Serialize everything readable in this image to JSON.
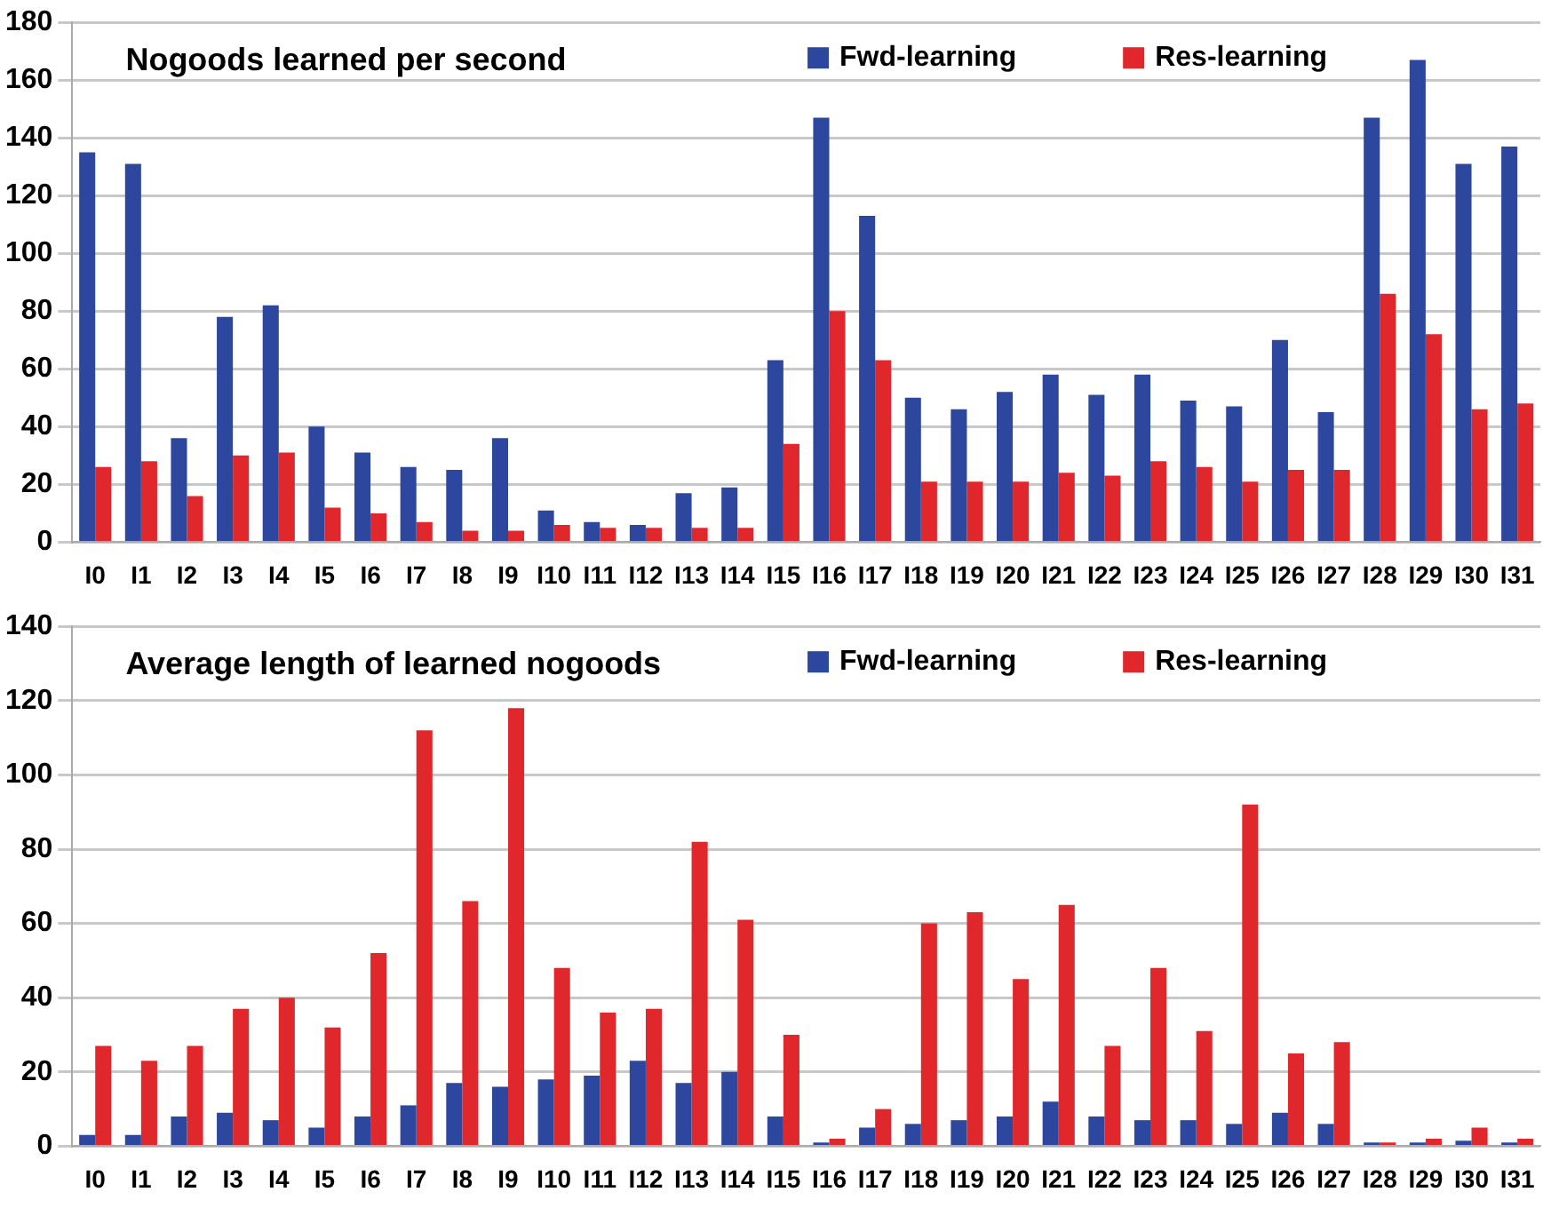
{
  "chart_data": [
    {
      "type": "bar",
      "title": "Nogoods learned per second",
      "categories": [
        "I0",
        "I1",
        "I2",
        "I3",
        "I4",
        "I5",
        "I6",
        "I7",
        "I8",
        "I9",
        "I10",
        "I11",
        "I12",
        "I13",
        "I14",
        "I15",
        "I16",
        "I17",
        "I18",
        "I19",
        "I20",
        "I21",
        "I22",
        "I23",
        "I24",
        "I25",
        "I26",
        "I27",
        "I28",
        "I29",
        "I30",
        "I31"
      ],
      "series": [
        {
          "name": "Fwd-learning",
          "color": "#2e479e",
          "values": [
            135,
            131,
            36,
            78,
            82,
            40,
            31,
            26,
            25,
            36,
            11,
            7,
            6,
            17,
            19,
            63,
            147,
            113,
            50,
            46,
            52,
            58,
            51,
            58,
            49,
            47,
            70,
            45,
            147,
            167,
            131,
            137
          ]
        },
        {
          "name": "Res-learning",
          "color": "#e0282c",
          "values": [
            26,
            28,
            16,
            30,
            31,
            12,
            10,
            7,
            4,
            4,
            6,
            5,
            5,
            5,
            5,
            34,
            80,
            63,
            21,
            21,
            21,
            24,
            23,
            28,
            26,
            21,
            25,
            25,
            86,
            72,
            46,
            48
          ]
        }
      ],
      "ylim": [
        0,
        180
      ],
      "yticks": [
        0,
        20,
        40,
        60,
        80,
        100,
        120,
        140,
        160,
        180
      ],
      "grid": "y",
      "legend": "top right"
    },
    {
      "type": "bar",
      "title": "Average length of learned nogoods",
      "categories": [
        "I0",
        "I1",
        "I2",
        "I3",
        "I4",
        "I5",
        "I6",
        "I7",
        "I8",
        "I9",
        "I10",
        "I11",
        "I12",
        "I13",
        "I14",
        "I15",
        "I16",
        "I17",
        "I18",
        "I19",
        "I20",
        "I21",
        "I22",
        "I23",
        "I24",
        "I25",
        "I26",
        "I27",
        "I28",
        "I29",
        "I30",
        "I31"
      ],
      "series": [
        {
          "name": "Fwd-learning",
          "color": "#2e479e",
          "values": [
            3,
            3,
            8,
            9,
            7,
            5,
            8,
            11,
            17,
            16,
            18,
            19,
            23,
            17,
            20,
            8,
            1,
            5,
            6,
            7,
            8,
            12,
            8,
            7,
            7,
            6,
            9,
            6,
            1,
            1,
            1.5,
            1
          ]
        },
        {
          "name": "Res-learning",
          "color": "#e0282c",
          "values": [
            27,
            23,
            27,
            37,
            40,
            32,
            52,
            112,
            66,
            118,
            48,
            36,
            37,
            82,
            61,
            30,
            2,
            10,
            60,
            63,
            45,
            65,
            27,
            48,
            31,
            92,
            25,
            28,
            1,
            2,
            5,
            2
          ]
        }
      ],
      "ylim": [
        0,
        140
      ],
      "yticks": [
        0,
        20,
        40,
        60,
        80,
        100,
        120,
        140
      ],
      "grid": "y",
      "legend": "top right"
    }
  ]
}
